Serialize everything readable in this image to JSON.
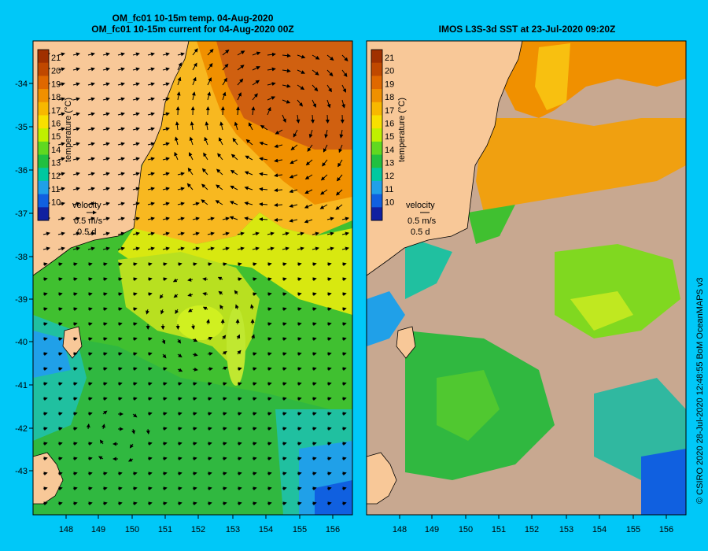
{
  "left_panel": {
    "title_line1": "OM_fc01 10-15m temp. 04-Aug-2020",
    "title_line2": "OM_fc01 10-15m current for 04-Aug-2020 00Z"
  },
  "right_panel": {
    "title": "IMOS L3S-3d SST at 23-Jul-2020 09:20Z"
  },
  "colorbar": {
    "label": "temperature (°C)",
    "ticks": [
      "21",
      "20",
      "19",
      "18",
      "17",
      "16",
      "15",
      "14",
      "13",
      "12",
      "11",
      "10"
    ],
    "colors": [
      "#a03000",
      "#c04800",
      "#e06800",
      "#f09000",
      "#f8b800",
      "#f8e000",
      "#c0f000",
      "#60d820",
      "#20c040",
      "#00c8a0",
      "#20a0e8",
      "#1060e0",
      "#1020a0"
    ]
  },
  "velocity_legend": {
    "title": "velocity",
    "speed": "0.5 m/s",
    "duration": "0.5 d"
  },
  "axes": {
    "lat_ticks": [
      "-34",
      "-35",
      "-36",
      "-37",
      "-38",
      "-39",
      "-40",
      "-41",
      "-42",
      "-43"
    ],
    "lon_ticks": [
      "148",
      "149",
      "150",
      "151",
      "152",
      "153",
      "154",
      "155",
      "156"
    ]
  },
  "colors": {
    "land": "#f8c898",
    "cloud": "#c8a890",
    "background": "#00c8f8"
  },
  "credit": "© CSIRO 2020   28-Jul-2020 12:48:55 BoM OceanMAPS v3"
}
